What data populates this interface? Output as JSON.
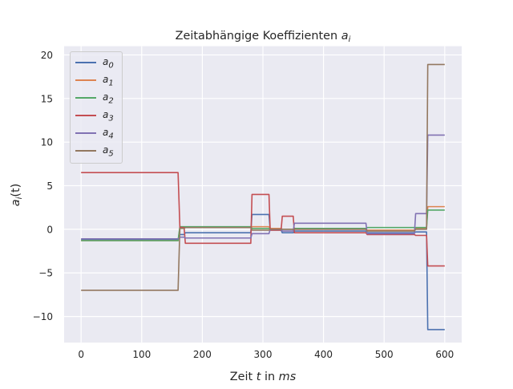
{
  "chart_data": {
    "type": "line",
    "title": "Zeitabhängige Koeffizienten",
    "title_symbol": "a",
    "title_symbol_sub": "i",
    "xlabel_prefix": "Zeit ",
    "xlabel_var": "t",
    "xlabel_mid": " in ",
    "xlabel_unit": "ms",
    "ylabel_a": "a",
    "ylabel_sub": "i",
    "ylabel_arg": "(t)",
    "xlim": [
      -28,
      628
    ],
    "ylim": [
      -13,
      21
    ],
    "x_ticks": [
      0,
      100,
      200,
      300,
      400,
      500,
      600
    ],
    "y_ticks": [
      -10,
      -5,
      0,
      5,
      10,
      15,
      20
    ],
    "x_tick_labels": [
      "0",
      "100",
      "200",
      "300",
      "400",
      "500",
      "600"
    ],
    "y_tick_labels": [
      "−10",
      "−5",
      "0",
      "5",
      "10",
      "15",
      "20"
    ],
    "grid": true,
    "legend_position": "upper-left",
    "series": [
      {
        "name": "a0",
        "base": "a",
        "sub": "0",
        "color": "#4c72b0",
        "x": [
          0,
          160,
          163,
          170,
          172,
          280,
          282,
          310,
          312,
          330,
          332,
          350,
          352,
          470,
          472,
          550,
          552,
          570,
          572,
          600
        ],
        "y": [
          -1.2,
          -1.2,
          -0.6,
          -0.6,
          -0.4,
          -0.4,
          1.7,
          1.7,
          -0.1,
          -0.1,
          -0.4,
          -0.4,
          -0.2,
          -0.2,
          -0.4,
          -0.4,
          -0.3,
          -0.3,
          -11.5,
          -11.5
        ]
      },
      {
        "name": "a1",
        "base": "a",
        "sub": "1",
        "color": "#dd8452",
        "x": [
          0,
          160,
          163,
          280,
          282,
          310,
          312,
          330,
          332,
          350,
          352,
          470,
          472,
          550,
          552,
          570,
          572,
          600
        ],
        "y": [
          -1.3,
          -1.3,
          0.2,
          0.2,
          0.3,
          0.3,
          0.1,
          0.1,
          0.0,
          0.0,
          0.0,
          0.0,
          -0.1,
          -0.1,
          0.1,
          0.1,
          2.6,
          2.6
        ]
      },
      {
        "name": "a2",
        "base": "a",
        "sub": "2",
        "color": "#55a868",
        "x": [
          0,
          160,
          163,
          280,
          282,
          310,
          312,
          350,
          352,
          470,
          472,
          550,
          552,
          570,
          572,
          600
        ],
        "y": [
          -1.3,
          -1.3,
          0.3,
          0.3,
          0.1,
          0.1,
          0.0,
          0.0,
          0.1,
          0.1,
          0.2,
          0.2,
          0.2,
          0.2,
          2.2,
          2.2
        ]
      },
      {
        "name": "a3",
        "base": "a",
        "sub": "3",
        "color": "#c44e52",
        "x": [
          0,
          160,
          163,
          170,
          172,
          280,
          282,
          310,
          312,
          330,
          332,
          350,
          352,
          470,
          472,
          550,
          552,
          570,
          572,
          600
        ],
        "y": [
          6.5,
          6.5,
          0.2,
          0.2,
          -1.6,
          -1.6,
          4.0,
          4.0,
          -0.1,
          -0.1,
          1.5,
          1.5,
          -0.4,
          -0.4,
          -0.6,
          -0.6,
          -0.7,
          -0.7,
          -4.2,
          -4.2
        ]
      },
      {
        "name": "a4",
        "base": "a",
        "sub": "4",
        "color": "#8172b3",
        "x": [
          0,
          160,
          163,
          170,
          172,
          280,
          282,
          310,
          312,
          330,
          332,
          350,
          352,
          470,
          472,
          550,
          552,
          570,
          572,
          600
        ],
        "y": [
          -1.1,
          -1.1,
          -0.9,
          -0.9,
          -1.0,
          -1.0,
          -0.5,
          -0.5,
          0.0,
          0.0,
          -0.2,
          -0.2,
          0.7,
          0.7,
          -0.5,
          -0.5,
          1.8,
          1.8,
          10.8,
          10.8
        ]
      },
      {
        "name": "a5",
        "base": "a",
        "sub": "5",
        "color": "#937860",
        "x": [
          0,
          160,
          163,
          170,
          172,
          280,
          282,
          310,
          312,
          350,
          352,
          470,
          472,
          550,
          552,
          570,
          572,
          600
        ],
        "y": [
          -7.0,
          -7.0,
          0.1,
          0.1,
          0.2,
          0.2,
          -0.1,
          -0.1,
          0.0,
          0.0,
          0.0,
          0.0,
          -0.2,
          -0.2,
          0.0,
          0.0,
          18.9,
          18.9
        ]
      }
    ]
  }
}
